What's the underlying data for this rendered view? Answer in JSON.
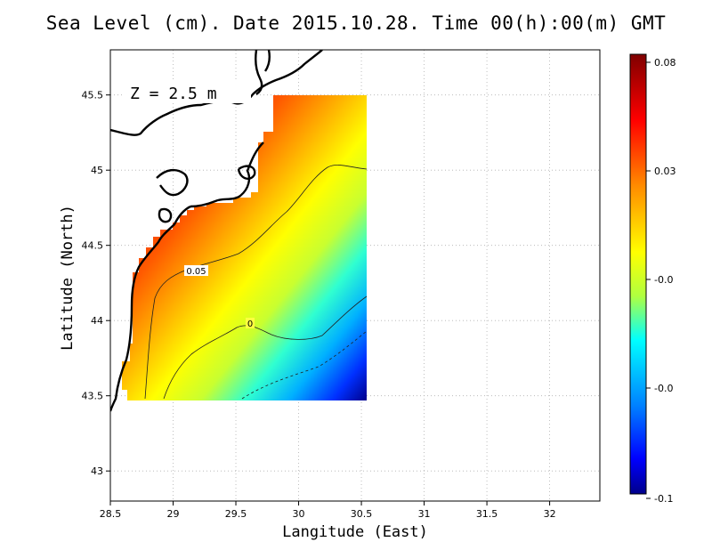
{
  "title": "Sea Level (cm). Date 2015.10.28. Time 00(h):00(m) GMT",
  "depth_label": "Z = 2.5 m",
  "contour_labels": [
    "0.05",
    "0"
  ],
  "chart_data": {
    "type": "heatmap",
    "title": "Sea Level (cm). Date 2015.10.28. Time 00(h):00(m) GMT",
    "xlabel": "Langitude (East)",
    "ylabel": "Latitude (North)",
    "xlim": [
      28.5,
      32.4
    ],
    "ylim": [
      42.8,
      45.8
    ],
    "x_ticks": [
      "28.5",
      "29",
      "29.5",
      "30",
      "30.5",
      "31",
      "31.5",
      "32"
    ],
    "x_tick_values": [
      28.5,
      29,
      29.5,
      30,
      30.5,
      31,
      31.5,
      32
    ],
    "y_ticks": [
      "43",
      "43.5",
      "44",
      "44.5",
      "45",
      "45.5"
    ],
    "y_tick_values": [
      43,
      43.5,
      44,
      44.5,
      45,
      45.5
    ],
    "grid": true,
    "colorbar": {
      "tick_labels": [
        "0.08",
        "0.03",
        "-0.0",
        "-0.0",
        "-0.1"
      ],
      "colors": [
        "#7f0000",
        "#ff0000",
        "#ff8c00",
        "#ffff00",
        "#00ffff",
        "#0000ff",
        "#00008b"
      ]
    },
    "contours": [
      {
        "label": "0.05",
        "value": 0.05
      },
      {
        "label": "0",
        "value": 0
      }
    ]
  }
}
